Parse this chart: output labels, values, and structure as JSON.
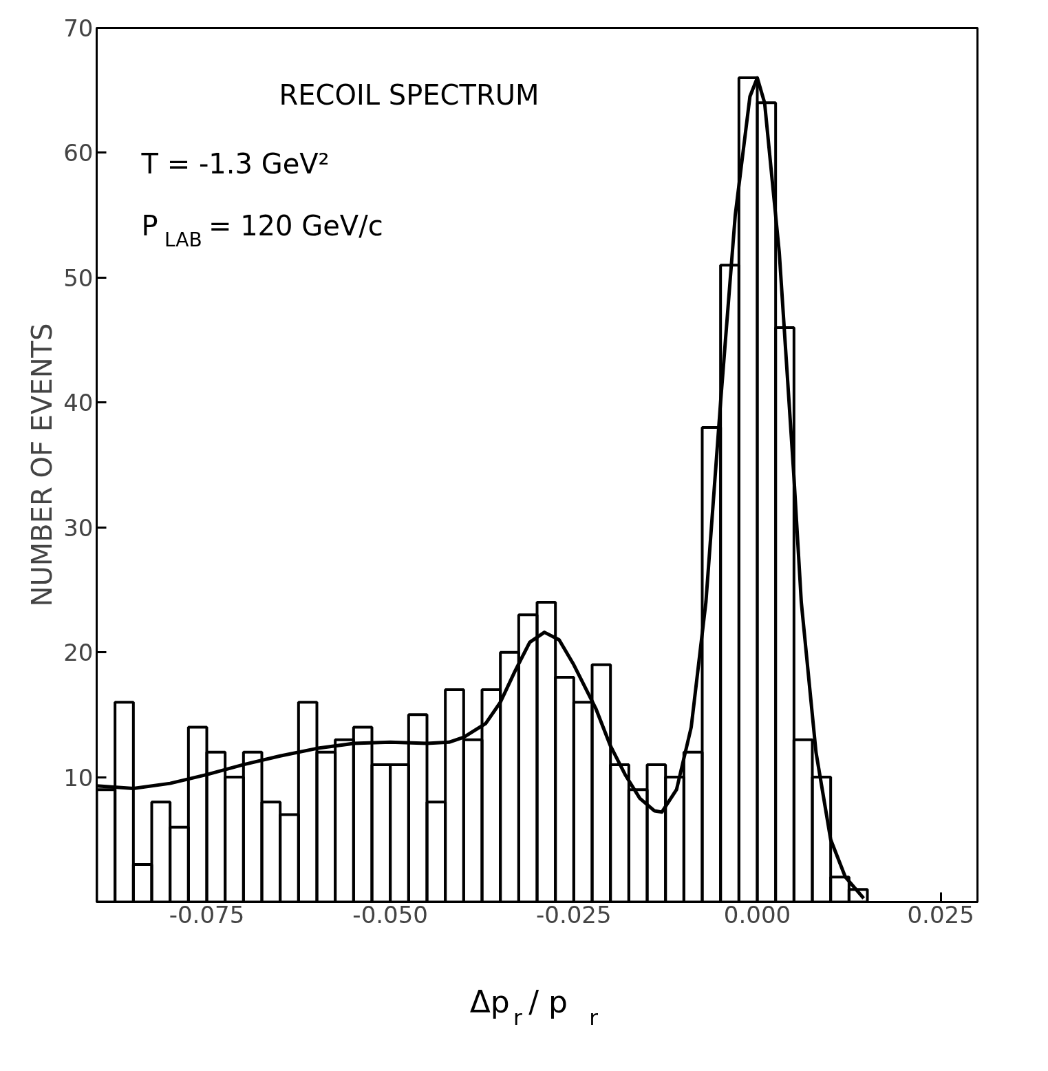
{
  "chart_data": {
    "type": "histogram",
    "xlabel": "Δp$_{r}$ / p$_{r}$",
    "ylabel": "NUMBER OF EVENTS",
    "annotations": [
      "RECOIL SPECTRUM",
      "T = -1.3 GeV²",
      "P$_{LAB}$ = 120 GeV/c"
    ],
    "bins": [
      -0.09,
      -0.0875,
      -0.085,
      -0.0825,
      -0.08,
      -0.0775,
      -0.075,
      -0.0725,
      -0.07,
      -0.0675,
      -0.065,
      -0.0625,
      -0.06,
      -0.0575,
      -0.055,
      -0.0525,
      -0.05,
      -0.0475,
      -0.045,
      -0.0425,
      -0.04,
      -0.0375,
      -0.035,
      -0.0325,
      -0.03,
      -0.0275,
      -0.025,
      -0.0225,
      -0.02,
      -0.0175,
      -0.015,
      -0.0125,
      -0.01,
      -0.0075,
      -0.005,
      -0.0025,
      0.0,
      0.0025,
      0.005,
      0.0075,
      0.01,
      0.0125,
      0.015
    ],
    "values": [
      9,
      16,
      3,
      8,
      6,
      14,
      12,
      10,
      12,
      8,
      7,
      16,
      12,
      13,
      14,
      11,
      11,
      15,
      8,
      17,
      13,
      17,
      20,
      23,
      24,
      18,
      16,
      19,
      11,
      9,
      11,
      10,
      12,
      38,
      51,
      66,
      64,
      46,
      13,
      10,
      2,
      1
    ],
    "color": "#000000",
    "series": [
      {
        "type": "line",
        "color": "#000000",
        "x": [
          -0.09,
          -0.085,
          -0.08,
          -0.075,
          -0.07,
          -0.065,
          -0.06,
          -0.055,
          -0.05,
          -0.045,
          -0.042,
          -0.04,
          -0.037,
          -0.035,
          -0.033,
          -0.031,
          -0.029,
          -0.027,
          -0.025,
          -0.022,
          -0.02,
          -0.018,
          -0.016,
          -0.014,
          -0.013,
          -0.011,
          -0.009,
          -0.007,
          -0.005,
          -0.003,
          -0.001,
          0.0,
          0.001,
          0.003,
          0.005,
          0.006,
          0.008,
          0.01,
          0.012,
          0.0145
        ],
        "values": [
          9.3,
          9.1,
          9.5,
          10.2,
          11,
          11.7,
          12.3,
          12.7,
          12.8,
          12.7,
          12.8,
          13.2,
          14.3,
          16,
          18.5,
          20.8,
          21.6,
          21,
          19,
          15.5,
          12.5,
          10.2,
          8.3,
          7.3,
          7.2,
          9,
          14,
          24,
          40,
          55,
          64.5,
          66,
          64,
          52,
          34,
          24,
          12,
          5,
          2,
          0.3
        ]
      }
    ],
    "xlim": [
      -0.09,
      0.03
    ],
    "ylim": [
      0,
      70
    ],
    "xticks": [
      {
        "value": -0.075,
        "label": "-0.075"
      },
      {
        "value": -0.05,
        "label": "-0.050"
      },
      {
        "value": -0.025,
        "label": "-0.025"
      },
      {
        "value": 0.0,
        "label": "0.000"
      },
      {
        "value": 0.025,
        "label": "0.025"
      }
    ],
    "yticks": [
      10,
      20,
      30,
      40,
      50,
      60,
      70
    ],
    "grid": false
  }
}
